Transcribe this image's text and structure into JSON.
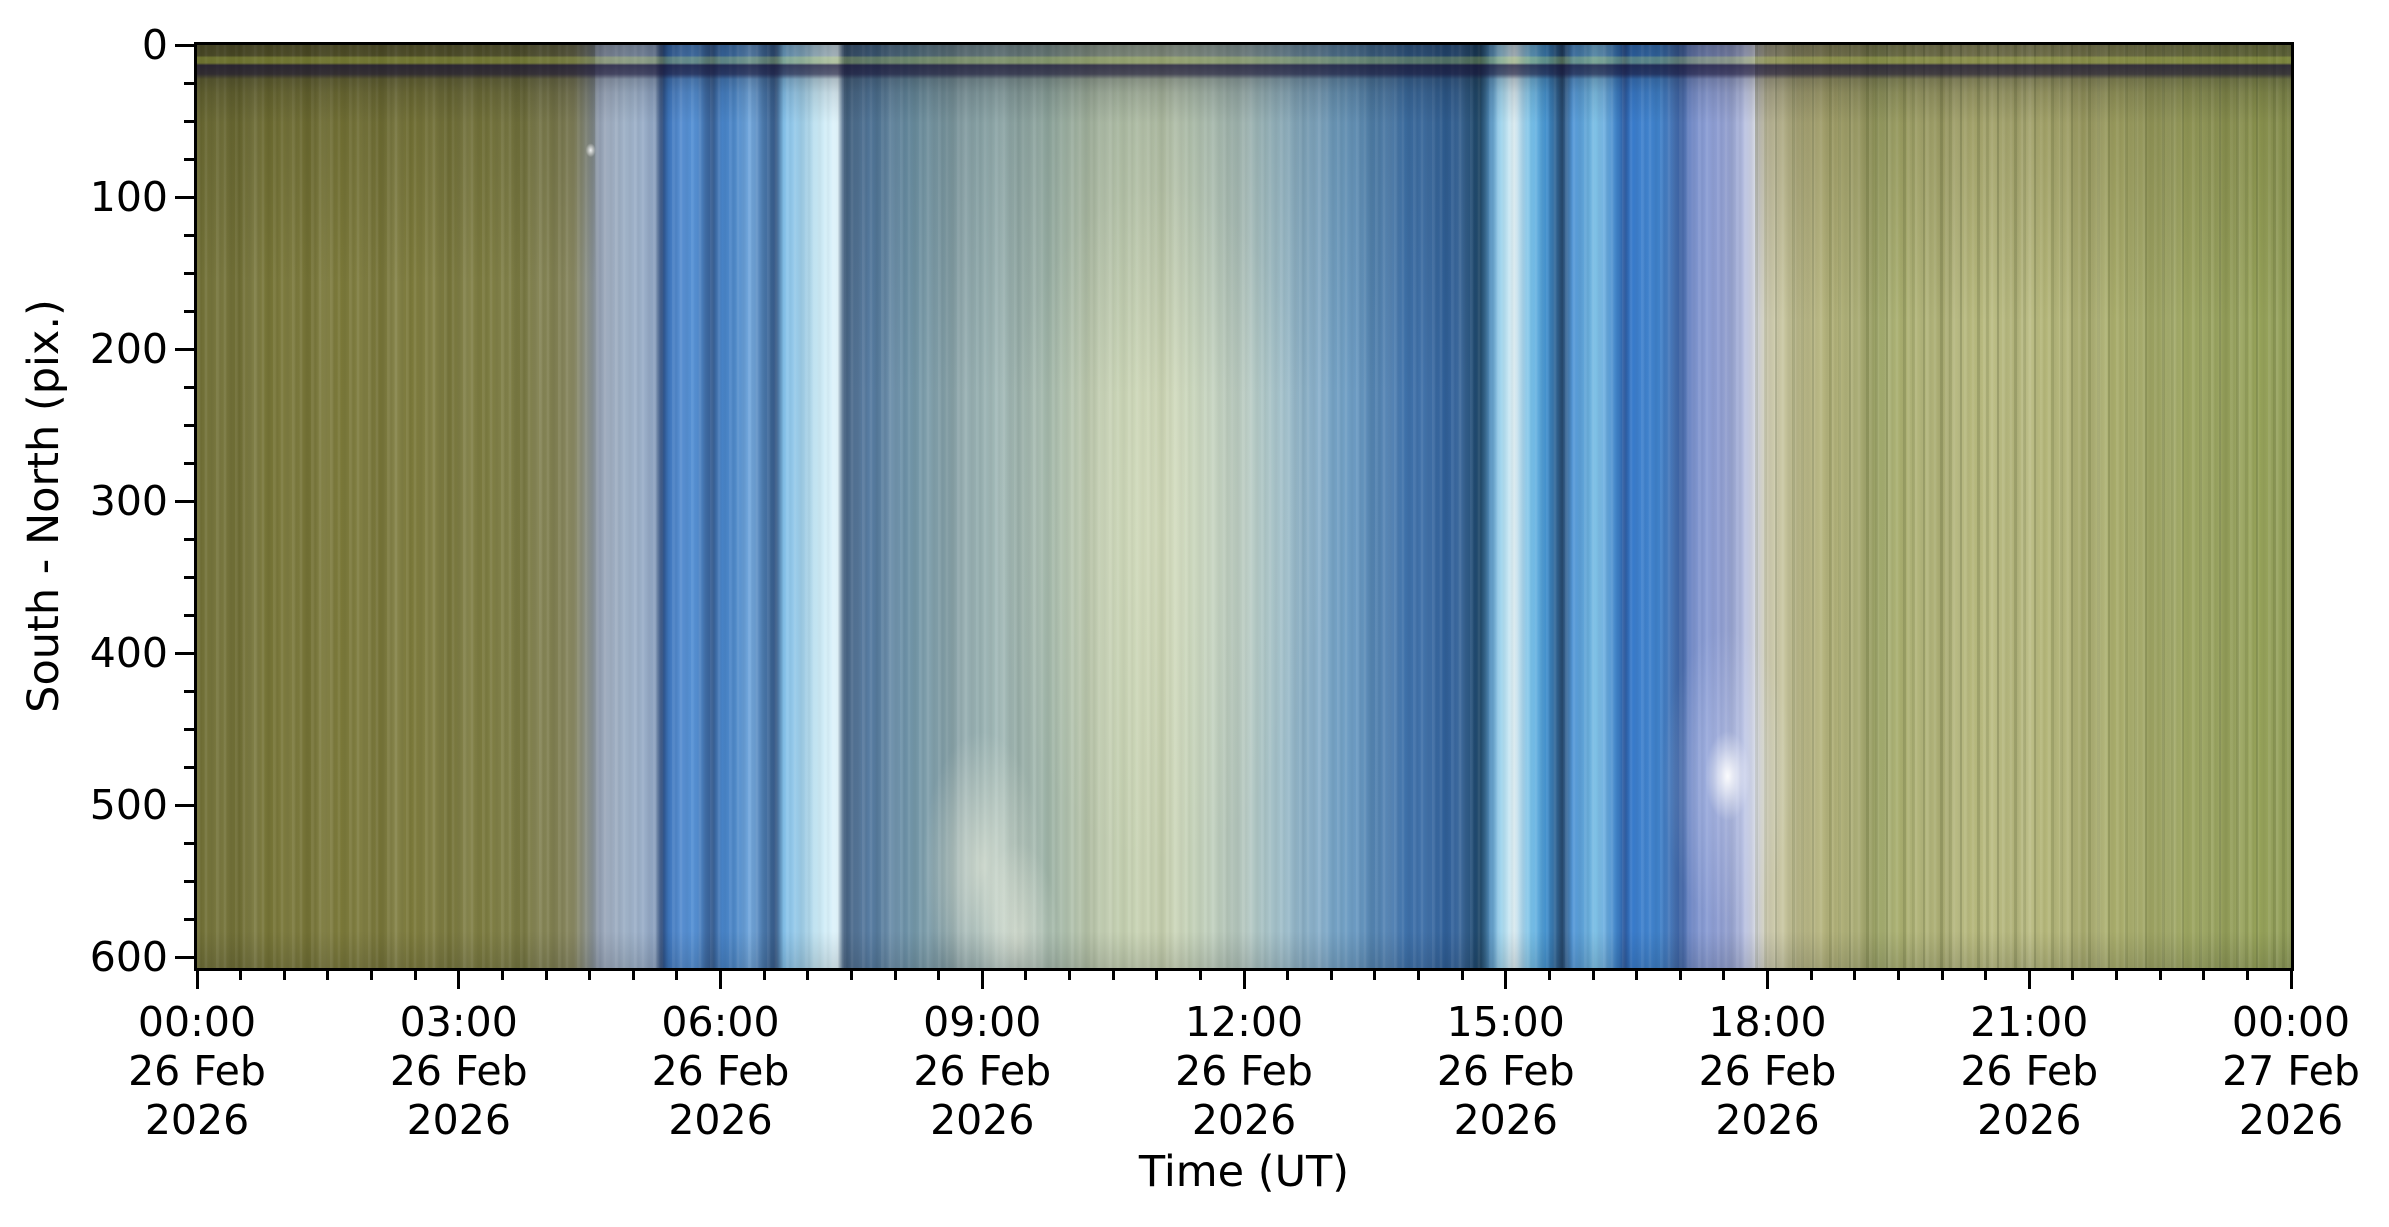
{
  "chart_data": {
    "type": "heatmap",
    "title": "",
    "xlabel": "Time (UT)",
    "ylabel": "South - North (pix.)",
    "description": "Keogram: all-sky camera north-south slice stacked over 24 hours. Olive/khaki daylight-like columns at both ends, groups of bright blue vertical bands around 05:00-07:30 and 15:00-17:30, and a pale teal/cream streaked region between 07:30 and 15:00. A dark horizontal band crosses the full width near pixel rows 8-19.",
    "x_axis": {
      "start": "26 Feb 2026 00:00",
      "end": "27 Feb 2026 00:00",
      "hours_span": 24,
      "major_tick_interval_hours": 3,
      "minor_tick_interval_hours": 0.5,
      "major_ticks": [
        {
          "hour": 0,
          "time": "00:00",
          "date": "26 Feb",
          "year": "2026"
        },
        {
          "hour": 3,
          "time": "03:00",
          "date": "26 Feb",
          "year": "2026"
        },
        {
          "hour": 6,
          "time": "06:00",
          "date": "26 Feb",
          "year": "2026"
        },
        {
          "hour": 9,
          "time": "09:00",
          "date": "26 Feb",
          "year": "2026"
        },
        {
          "hour": 12,
          "time": "12:00",
          "date": "26 Feb",
          "year": "2026"
        },
        {
          "hour": 15,
          "time": "15:00",
          "date": "26 Feb",
          "year": "2026"
        },
        {
          "hour": 18,
          "time": "18:00",
          "date": "26 Feb",
          "year": "2026"
        },
        {
          "hour": 21,
          "time": "21:00",
          "date": "26 Feb",
          "year": "2026"
        },
        {
          "hour": 24,
          "time": "00:00",
          "date": "27 Feb",
          "year": "2026"
        }
      ]
    },
    "y_axis": {
      "min": 0,
      "max": 607,
      "direction": "downward",
      "major_ticks": [
        0,
        100,
        200,
        300,
        400,
        500,
        600
      ],
      "minor_tick_interval": 25
    },
    "columns": [
      {
        "p": 0.0,
        "c": "#6f6e34"
      },
      {
        "p": 5.0,
        "c": "#787636"
      },
      {
        "p": 10.6,
        "c": "#7b793a"
      },
      {
        "p": 15.4,
        "c": "#7a7a40"
      },
      {
        "p": 18.0,
        "c": "#82815a"
      },
      {
        "p": 19.2,
        "c": "#93a0b4"
      },
      {
        "p": 20.6,
        "c": "#9fb2c8"
      },
      {
        "p": 21.9,
        "c": "#8ba2c2"
      },
      {
        "p": 22.2,
        "c": "#2b4a7c"
      },
      {
        "p": 22.5,
        "c": "#3a76c2"
      },
      {
        "p": 23.8,
        "c": "#5692d6"
      },
      {
        "p": 24.6,
        "c": "#2a5288"
      },
      {
        "p": 25.1,
        "c": "#4181ca"
      },
      {
        "p": 26.4,
        "c": "#68a2dc"
      },
      {
        "p": 27.65,
        "c": "#2e5280"
      },
      {
        "p": 28.0,
        "c": "#7cbce8"
      },
      {
        "p": 29.6,
        "c": "#c4e8f6"
      },
      {
        "p": 30.6,
        "c": "#e2f4fb"
      },
      {
        "p": 30.9,
        "c": "#3f5c7c"
      },
      {
        "p": 32.1,
        "c": "#557ca4"
      },
      {
        "p": 34.3,
        "c": "#7195a6"
      },
      {
        "p": 36.4,
        "c": "#8ca6aa"
      },
      {
        "p": 38.3,
        "c": "#a0b8b6"
      },
      {
        "p": 40.5,
        "c": "#9cb2a6"
      },
      {
        "p": 42.7,
        "c": "#bcc9ac"
      },
      {
        "p": 46.2,
        "c": "#ccd6b4"
      },
      {
        "p": 50.0,
        "c": "#b4c8c0"
      },
      {
        "p": 52.7,
        "c": "#90b6cc"
      },
      {
        "p": 55.3,
        "c": "#6496c0"
      },
      {
        "p": 57.9,
        "c": "#3b6ea8"
      },
      {
        "p": 60.1,
        "c": "#2e609c"
      },
      {
        "p": 61.3,
        "c": "#1c4464"
      },
      {
        "p": 61.8,
        "c": "#5090c0"
      },
      {
        "p": 62.3,
        "c": "#a6dcf4"
      },
      {
        "p": 62.9,
        "c": "#e8f8fd"
      },
      {
        "p": 63.7,
        "c": "#6cbce8"
      },
      {
        "p": 64.5,
        "c": "#3f8cca"
      },
      {
        "p": 65.2,
        "c": "#1d4066"
      },
      {
        "p": 65.7,
        "c": "#4c94d8"
      },
      {
        "p": 66.8,
        "c": "#7cc4ec"
      },
      {
        "p": 67.9,
        "c": "#3a7cc4"
      },
      {
        "p": 68.15,
        "c": "#27549a"
      },
      {
        "p": 68.5,
        "c": "#2e74c8"
      },
      {
        "p": 69.8,
        "c": "#4288d4"
      },
      {
        "p": 70.8,
        "c": "#30589c"
      },
      {
        "p": 71.4,
        "c": "#7990cc"
      },
      {
        "p": 72.6,
        "c": "#8c9cd4"
      },
      {
        "p": 73.8,
        "c": "#aab4dc"
      },
      {
        "p": 74.4,
        "c": "#d6d9e4"
      },
      {
        "p": 75.0,
        "c": "#cecbb0"
      },
      {
        "p": 76.1,
        "c": "#c2c093"
      },
      {
        "p": 77.3,
        "c": "#b5b37c"
      },
      {
        "p": 79.4,
        "c": "#a8ab70"
      },
      {
        "p": 80.4,
        "c": "#9fa866"
      },
      {
        "p": 81.8,
        "c": "#aeb274"
      },
      {
        "p": 83.7,
        "c": "#b2b478"
      },
      {
        "p": 86.6,
        "c": "#babc80"
      },
      {
        "p": 89.5,
        "c": "#b0b274"
      },
      {
        "p": 92.3,
        "c": "#a6ab68"
      },
      {
        "p": 95.7,
        "c": "#9aa45e"
      },
      {
        "p": 98.0,
        "c": "#96a258"
      },
      {
        "p": 100.0,
        "c": "#8f9c54"
      }
    ],
    "features": {
      "top_dark_band_rows": "8-19",
      "bright_spot": {
        "time": "~17:30",
        "row": "~490"
      },
      "bright_bottom_patch": {
        "time": "~09:00",
        "rows": "500-607"
      }
    }
  }
}
